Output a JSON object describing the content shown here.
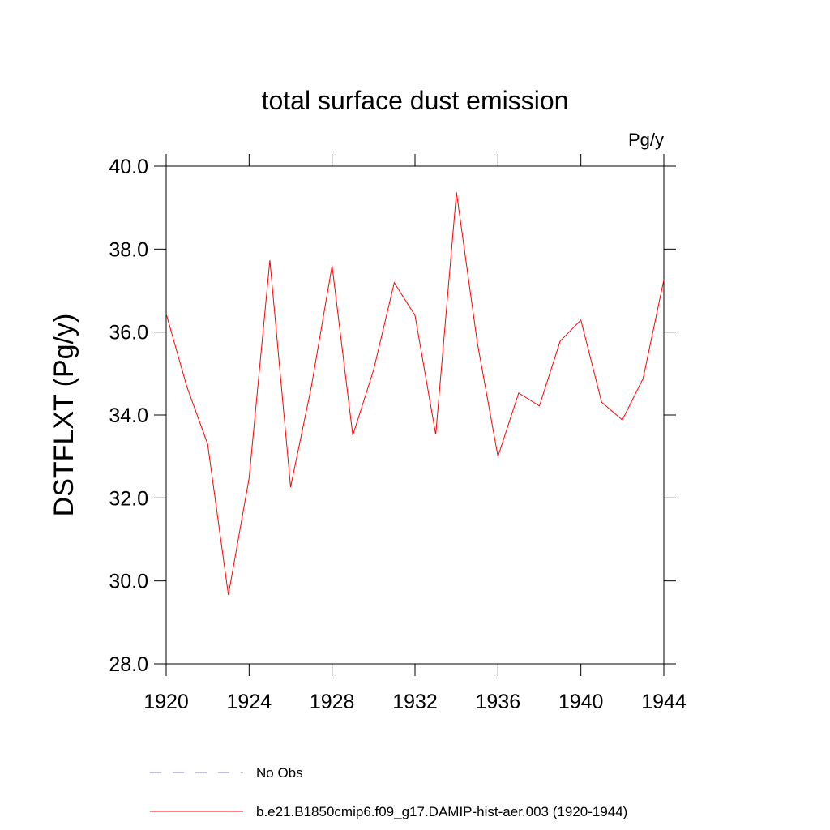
{
  "chart_data": {
    "type": "line",
    "title": "total surface dust emission",
    "units": "Pg/y",
    "y_label": "DSTFLXT  (Pg/y)",
    "x": [
      1920,
      1921,
      1922,
      1923,
      1924,
      1925,
      1926,
      1927,
      1928,
      1929,
      1930,
      1931,
      1932,
      1933,
      1934,
      1935,
      1936,
      1937,
      1938,
      1939,
      1940,
      1941,
      1942,
      1943,
      1944
    ],
    "series": [
      {
        "name": "b.e21.B1850cmip6.f09_g17.DAMIP-hist-aer.003 (1920-1944)",
        "color": "#ff0000",
        "values": [
          36.44,
          34.68,
          33.3,
          29.66,
          32.48,
          37.73,
          32.26,
          34.68,
          37.6,
          33.51,
          35.08,
          37.19,
          36.4,
          33.53,
          39.37,
          35.76,
          33.0,
          34.53,
          34.22,
          35.78,
          36.29,
          34.31,
          33.88,
          34.88,
          37.26
        ]
      }
    ],
    "legend_extra": [
      {
        "name": "No Obs",
        "color": "#7b7bc9",
        "style": "dashed"
      }
    ],
    "xlim": [
      1920,
      1944
    ],
    "xticks": [
      1920,
      1924,
      1928,
      1932,
      1936,
      1940,
      1944
    ],
    "ylim": [
      28,
      40
    ],
    "yticks": [
      {
        "value": 28,
        "label": "28.0"
      },
      {
        "value": 30,
        "label": "30.0"
      },
      {
        "value": 32,
        "label": "32.0"
      },
      {
        "value": 34,
        "label": "34.0"
      },
      {
        "value": 36,
        "label": "36.0"
      },
      {
        "value": 38,
        "label": "38.0"
      },
      {
        "value": 40,
        "label": "40.0"
      }
    ]
  }
}
